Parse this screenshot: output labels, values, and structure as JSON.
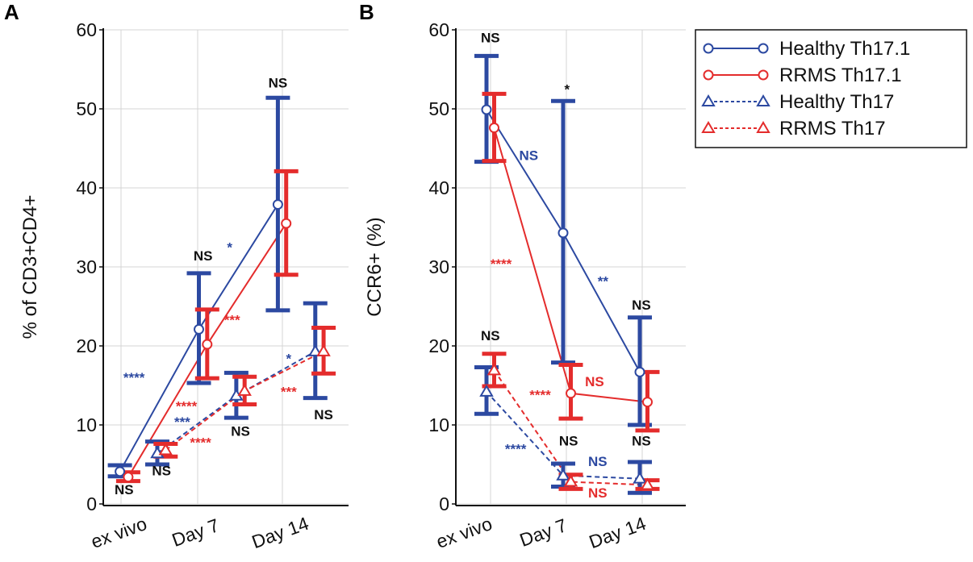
{
  "colors": {
    "blue": "#2c49a1",
    "red": "#e42c2c",
    "black": "#111111",
    "grid": "#d4d4d4"
  },
  "legend": [
    {
      "label": "Healthy Th17.1",
      "color": "#2c49a1",
      "marker": "circle",
      "dashed": false
    },
    {
      "label": "RRMS Th17.1",
      "color": "#e42c2c",
      "marker": "circle",
      "dashed": false
    },
    {
      "label": "Healthy Th17",
      "color": "#2c49a1",
      "marker": "triangle",
      "dashed": true
    },
    {
      "label": "RRMS Th17",
      "color": "#e42c2c",
      "marker": "triangle",
      "dashed": true
    }
  ],
  "chart_data": [
    {
      "panel": "A",
      "type": "line",
      "ylabel": "% of CD3+CD4+",
      "xlabel": "",
      "categories": [
        "ex vivo",
        "Day 7",
        "Day 14"
      ],
      "ylim": [
        0,
        60
      ],
      "yticks": [
        "0",
        "10",
        "20",
        "30",
        "40",
        "50",
        "60"
      ],
      "grid": true,
      "series": [
        {
          "name": "Healthy Th17.1",
          "color": "#2c49a1",
          "marker": "circle",
          "dashed": false,
          "points": [
            {
              "x": 0.85,
              "y": 4.1,
              "lo": 3.5,
              "hi": 4.9
            },
            {
              "x": 1.8,
              "y": 22.1,
              "lo": 15.3,
              "hi": 29.2
            },
            {
              "x": 2.75,
              "y": 37.9,
              "lo": 24.5,
              "hi": 51.4
            }
          ]
        },
        {
          "name": "RRMS Th17.1",
          "color": "#e42c2c",
          "marker": "circle",
          "dashed": false,
          "points": [
            {
              "x": 0.95,
              "y": 3.4,
              "lo": 2.9,
              "hi": 4.0
            },
            {
              "x": 1.9,
              "y": 20.2,
              "lo": 15.9,
              "hi": 24.6
            },
            {
              "x": 2.85,
              "y": 35.5,
              "lo": 29.0,
              "hi": 42.1
            }
          ]
        },
        {
          "name": "Healthy Th17",
          "color": "#2c49a1",
          "marker": "triangle",
          "dashed": true,
          "points": [
            {
              "x": 1.3,
              "y": 6.4,
              "lo": 5.0,
              "hi": 7.9
            },
            {
              "x": 2.25,
              "y": 13.7,
              "lo": 10.9,
              "hi": 16.6
            },
            {
              "x": 3.2,
              "y": 19.3,
              "lo": 13.4,
              "hi": 25.4
            }
          ]
        },
        {
          "name": "RRMS Th17",
          "color": "#e42c2c",
          "marker": "triangle",
          "dashed": true,
          "points": [
            {
              "x": 1.4,
              "y": 6.8,
              "lo": 6.0,
              "hi": 7.6
            },
            {
              "x": 2.35,
              "y": 14.3,
              "lo": 12.6,
              "hi": 16.1
            },
            {
              "x": 3.3,
              "y": 19.3,
              "lo": 16.5,
              "hi": 22.3
            }
          ]
        }
      ],
      "annotations": [
        {
          "text": "NS",
          "color": "black",
          "x": 0.9,
          "y": 1.2
        },
        {
          "text": "NS",
          "color": "black",
          "x": 1.35,
          "y": 3.6
        },
        {
          "text": "****",
          "color": "blue",
          "x": 1.02,
          "y": 15.4
        },
        {
          "text": "NS",
          "color": "black",
          "x": 1.85,
          "y": 30.8
        },
        {
          "text": "*",
          "color": "blue",
          "x": 2.17,
          "y": 31.9
        },
        {
          "text": "***",
          "color": "red",
          "x": 2.2,
          "y": 22.7
        },
        {
          "text": "****",
          "color": "red",
          "x": 1.65,
          "y": 11.8
        },
        {
          "text": "***",
          "color": "blue",
          "x": 1.6,
          "y": 9.8
        },
        {
          "text": "****",
          "color": "red",
          "x": 1.82,
          "y": 7.2
        },
        {
          "text": "*",
          "color": "blue",
          "x": 2.88,
          "y": 17.8
        },
        {
          "text": "***",
          "color": "red",
          "x": 2.88,
          "y": 13.6
        },
        {
          "text": "NS",
          "color": "black",
          "x": 2.3,
          "y": 8.6
        },
        {
          "text": "NS",
          "color": "black",
          "x": 2.75,
          "y": 52.7
        },
        {
          "text": "NS",
          "color": "black",
          "x": 3.3,
          "y": 10.7
        }
      ]
    },
    {
      "panel": "B",
      "type": "line",
      "ylabel": "CCR6+ (%)",
      "xlabel": "",
      "categories": [
        "ex vivo",
        "Day 7",
        "Day 14"
      ],
      "ylim": [
        0,
        60
      ],
      "yticks": [
        "0",
        "10",
        "20",
        "30",
        "40",
        "50",
        "60"
      ],
      "grid": true,
      "series": [
        {
          "name": "Healthy Th17.1",
          "color": "#2c49a1",
          "marker": "circle",
          "dashed": false,
          "points": [
            {
              "x": 0.95,
              "y": 49.9,
              "lo": 43.3,
              "hi": 56.7
            },
            {
              "x": 1.95,
              "y": 34.3,
              "lo": 17.9,
              "hi": 51.0
            },
            {
              "x": 2.95,
              "y": 16.7,
              "lo": 10.0,
              "hi": 23.6
            }
          ]
        },
        {
          "name": "RRMS Th17.1",
          "color": "#e42c2c",
          "marker": "circle",
          "dashed": false,
          "points": [
            {
              "x": 1.05,
              "y": 47.6,
              "lo": 43.4,
              "hi": 51.9
            },
            {
              "x": 2.05,
              "y": 14.0,
              "lo": 10.8,
              "hi": 17.6
            },
            {
              "x": 3.05,
              "y": 12.9,
              "lo": 9.3,
              "hi": 16.7
            }
          ]
        },
        {
          "name": "Healthy Th17",
          "color": "#2c49a1",
          "marker": "triangle",
          "dashed": true,
          "points": [
            {
              "x": 0.95,
              "y": 14.2,
              "lo": 11.4,
              "hi": 17.3
            },
            {
              "x": 1.95,
              "y": 3.6,
              "lo": 2.2,
              "hi": 5.1
            },
            {
              "x": 2.95,
              "y": 3.2,
              "lo": 1.4,
              "hi": 5.3
            }
          ]
        },
        {
          "name": "RRMS Th17",
          "color": "#e42c2c",
          "marker": "triangle",
          "dashed": true,
          "points": [
            {
              "x": 1.05,
              "y": 16.9,
              "lo": 14.9,
              "hi": 19.0
            },
            {
              "x": 2.05,
              "y": 2.8,
              "lo": 1.9,
              "hi": 3.7
            },
            {
              "x": 3.05,
              "y": 2.4,
              "lo": 1.9,
              "hi": 3.0
            }
          ]
        }
      ],
      "annotations": [
        {
          "text": "NS",
          "color": "black",
          "x": 1.0,
          "y": 58.4
        },
        {
          "text": "NS",
          "color": "blue",
          "x": 1.5,
          "y": 43.5
        },
        {
          "text": "*",
          "color": "black",
          "x": 2.0,
          "y": 51.9
        },
        {
          "text": "****",
          "color": "red",
          "x": 1.14,
          "y": 29.8
        },
        {
          "text": "**",
          "color": "blue",
          "x": 2.47,
          "y": 27.6
        },
        {
          "text": "NS",
          "color": "black",
          "x": 1.0,
          "y": 20.7
        },
        {
          "text": "****",
          "color": "red",
          "x": 1.65,
          "y": 13.2
        },
        {
          "text": "NS",
          "color": "red",
          "x": 2.36,
          "y": 14.9
        },
        {
          "text": "NS",
          "color": "black",
          "x": 2.97,
          "y": 24.6
        },
        {
          "text": "****",
          "color": "blue",
          "x": 1.33,
          "y": 6.4
        },
        {
          "text": "NS",
          "color": "black",
          "x": 2.02,
          "y": 7.4
        },
        {
          "text": "NS",
          "color": "blue",
          "x": 2.4,
          "y": 4.8
        },
        {
          "text": "NS",
          "color": "red",
          "x": 2.4,
          "y": 0.8
        },
        {
          "text": "NS",
          "color": "black",
          "x": 2.97,
          "y": 7.4
        }
      ]
    }
  ]
}
